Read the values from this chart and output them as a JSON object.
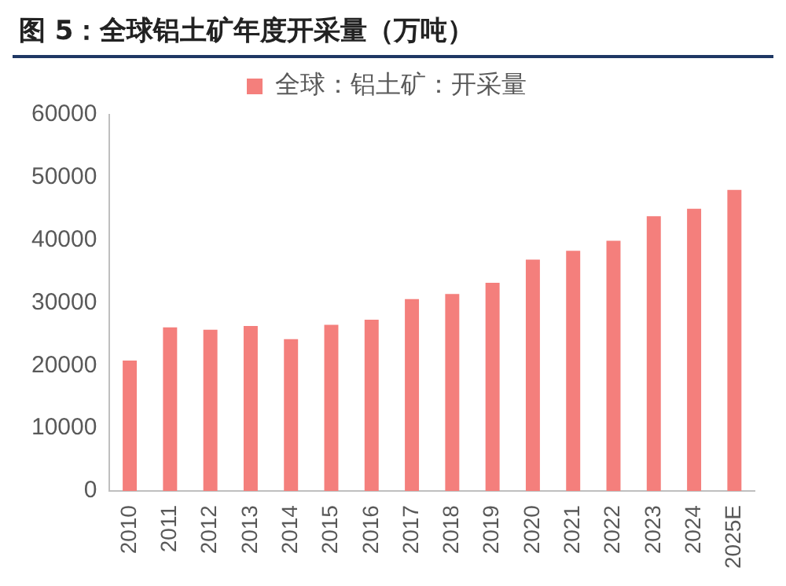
{
  "chart_data": {
    "type": "bar",
    "title": "图 5：全球铝土矿年度开采量（万吨）",
    "categories": [
      "2010",
      "2011",
      "2012",
      "2013",
      "2014",
      "2015",
      "2016",
      "2017",
      "2018",
      "2019",
      "2020",
      "2021",
      "2022",
      "2023",
      "2024",
      "2025E"
    ],
    "series": [
      {
        "name": "全球：铝土矿：开采量",
        "color": "#f47f7c",
        "values": [
          20800,
          26100,
          25700,
          26300,
          24200,
          26500,
          27300,
          30600,
          31400,
          33200,
          36900,
          38300,
          39900,
          43800,
          45000,
          48000
        ]
      }
    ],
    "ylim": [
      0,
      60000
    ],
    "yticks": [
      0,
      10000,
      20000,
      30000,
      40000,
      50000,
      60000
    ],
    "grid": false,
    "legend": "top"
  }
}
